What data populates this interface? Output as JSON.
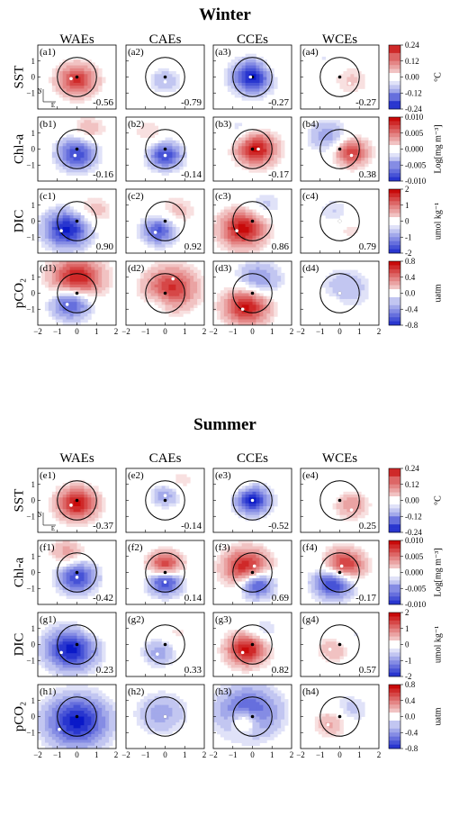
{
  "figure": {
    "columns": [
      "WAEs",
      "CAEs",
      "CCEs",
      "WCEs"
    ],
    "sections": [
      {
        "title": "Winter",
        "rows": [
          {
            "var": "SST",
            "label": "SST",
            "labels": [
              "(a1)",
              "(a2)",
              "(a3)",
              "(a4)"
            ],
            "corr": [
              "-0.56",
              "-0.79",
              "-0.27",
              "-0.27"
            ],
            "colorbar": {
              "unit": "°C",
              "ticks": [
                "0.24",
                "0.12",
                "0.00",
                "-0.12",
                "-0.24"
              ],
              "range": [
                -0.24,
                0.24
              ]
            }
          },
          {
            "var": "Chl",
            "label": "Chl-a",
            "labels": [
              "(b1)",
              "(b2)",
              "(b3)",
              "(b4)"
            ],
            "corr": [
              "-0.16",
              "-0.14",
              "-0.17",
              "0.38"
            ],
            "colorbar": {
              "unit": "Log[mg m⁻³]",
              "ticks": [
                "0.010",
                "0.005",
                "0.000",
                "-0.005",
                "-0.010"
              ],
              "range": [
                -0.01,
                0.01
              ]
            }
          },
          {
            "var": "DIC",
            "label": "DIC",
            "labels": [
              "(c1)",
              "(c2)",
              "(c3)",
              "(c4)"
            ],
            "corr": [
              "0.90",
              "0.92",
              "0.86",
              "0.79"
            ],
            "colorbar": {
              "unit": "umol kg⁻¹",
              "ticks": [
                "2",
                "1",
                "0",
                "-1",
                "-2"
              ],
              "range": [
                -2,
                2
              ]
            }
          },
          {
            "var": "pCO2",
            "label": "pCO₂",
            "labels": [
              "(d1)",
              "(d2)",
              "(d3)",
              "(d4)"
            ],
            "corr": [
              "",
              "",
              "",
              ""
            ],
            "colorbar": {
              "unit": "uatm",
              "ticks": [
                "0.8",
                "0.4",
                "0.0",
                "-0.4",
                "-0.8"
              ],
              "range": [
                -0.8,
                0.8
              ]
            }
          }
        ]
      },
      {
        "title": "Summer",
        "rows": [
          {
            "var": "SST",
            "label": "SST",
            "labels": [
              "(e1)",
              "(e2)",
              "(e3)",
              "(e4)"
            ],
            "corr": [
              "-0.37",
              "-0.14",
              "-0.52",
              "0.25"
            ],
            "colorbar": {
              "unit": "°C",
              "ticks": [
                "0.24",
                "0.12",
                "0.00",
                "-0.12",
                "-0.24"
              ],
              "range": [
                -0.24,
                0.24
              ]
            }
          },
          {
            "var": "Chl",
            "label": "Chl-a",
            "labels": [
              "(f1)",
              "(f2)",
              "(f3)",
              "(f4)"
            ],
            "corr": [
              "-0.42",
              "0.14",
              "0.69",
              "-0.17"
            ],
            "colorbar": {
              "unit": "Log[mg m⁻³]",
              "ticks": [
                "0.010",
                "0.005",
                "0.000",
                "-0.005",
                "-0.010"
              ],
              "range": [
                -0.01,
                0.01
              ]
            }
          },
          {
            "var": "DIC",
            "label": "DIC",
            "labels": [
              "(g1)",
              "(g2)",
              "(g3)",
              "(g4)"
            ],
            "corr": [
              "0.23",
              "0.33",
              "0.82",
              "0.57"
            ],
            "colorbar": {
              "unit": "umol kg⁻¹",
              "ticks": [
                "2",
                "1",
                "0",
                "-1",
                "-2"
              ],
              "range": [
                -2,
                2
              ]
            }
          },
          {
            "var": "pCO2",
            "label": "pCO₂",
            "labels": [
              "(h1)",
              "(h2)",
              "(h3)",
              "(h4)"
            ],
            "corr": [
              "",
              "",
              "",
              ""
            ],
            "colorbar": {
              "unit": "uatm",
              "ticks": [
                "0.8",
                "0.4",
                "0.0",
                "-0.4",
                "-0.8"
              ],
              "range": [
                -0.8,
                0.8
              ]
            }
          }
        ]
      }
    ],
    "compass": {
      "north": "N",
      "east": "E"
    }
  },
  "chart_data": {
    "type": "heatmap",
    "x": {
      "ticks": [
        "−2",
        "−1",
        "0",
        "1",
        "2"
      ],
      "range": [
        -2,
        2
      ]
    },
    "y": {
      "ticks": [
        "1",
        "0",
        "−1"
      ],
      "range": [
        -2,
        2
      ]
    },
    "grid": false,
    "colormap": {
      "low": "#0a1fd0",
      "mid": "#ffffff",
      "high": "#d40a0a"
    },
    "panels": {
      "a1": {
        "blobs": [
          [
            0,
            -0.2,
            0.7,
            0.2
          ]
        ],
        "center": [
          0,
          0
        ],
        "extremum": [
          -0.3,
          -0.1
        ]
      },
      "a2": {
        "blobs": [
          [
            0,
            -0.2,
            0.6,
            -0.07
          ],
          [
            0.8,
            1.2,
            0.6,
            0.03
          ]
        ],
        "center": [
          0,
          0
        ],
        "extremum": [
          0,
          -0.3
        ]
      },
      "a3": {
        "blobs": [
          [
            0,
            0,
            0.7,
            -0.24
          ],
          [
            1.0,
            0.5,
            0.6,
            0.04
          ]
        ],
        "center": [
          0,
          0
        ],
        "extremum": [
          -0.1,
          0
        ]
      },
      "a4": {
        "blobs": [
          [
            0.6,
            -0.2,
            0.7,
            0.05
          ],
          [
            -0.8,
            1.2,
            0.6,
            -0.03
          ]
        ],
        "center": [
          0,
          0
        ],
        "extremum": [
          0.5,
          -0.4
        ]
      },
      "b1": {
        "blobs": [
          [
            0,
            -0.3,
            0.7,
            -0.008
          ],
          [
            0.6,
            1.2,
            0.6,
            0.003
          ]
        ],
        "center": [
          0,
          0
        ],
        "extremum": [
          -0.1,
          -0.4
        ]
      },
      "b2": {
        "blobs": [
          [
            0,
            -0.4,
            0.6,
            -0.008
          ],
          [
            -0.8,
            1.0,
            0.6,
            0.002
          ]
        ],
        "center": [
          0,
          0
        ],
        "extremum": [
          0,
          -0.4
        ]
      },
      "b3": {
        "blobs": [
          [
            0.2,
            0,
            0.7,
            0.01
          ],
          [
            -0.6,
            1.2,
            0.6,
            -0.002
          ]
        ],
        "center": [
          0,
          0
        ],
        "extremum": [
          0.3,
          0
        ]
      },
      "b4": {
        "blobs": [
          [
            0.6,
            -0.2,
            0.6,
            0.008
          ],
          [
            -0.6,
            0.8,
            0.7,
            -0.004
          ]
        ],
        "center": [
          0,
          0
        ],
        "extremum": [
          0.6,
          -0.4
        ]
      },
      "c1": {
        "blobs": [
          [
            -0.5,
            -0.5,
            0.8,
            -2
          ],
          [
            0.8,
            0.6,
            0.7,
            0.6
          ]
        ],
        "center": [
          0,
          0
        ],
        "extremum": [
          -0.8,
          -0.6
        ]
      },
      "c2": {
        "blobs": [
          [
            -0.3,
            -0.6,
            0.6,
            -1.5
          ],
          [
            0.6,
            0.6,
            0.7,
            0.5
          ]
        ],
        "center": [
          0,
          0
        ],
        "extremum": [
          -0.5,
          -0.7
        ]
      },
      "c3": {
        "blobs": [
          [
            -0.5,
            -0.5,
            0.8,
            2
          ],
          [
            0.6,
            1.0,
            0.6,
            -0.5
          ]
        ],
        "center": [
          0,
          0
        ],
        "extremum": [
          -0.8,
          -0.6
        ]
      },
      "c4": {
        "blobs": [
          [
            -0.3,
            0.6,
            0.6,
            -0.4
          ],
          [
            0.5,
            -0.5,
            0.6,
            0.3
          ]
        ],
        "center": [
          0,
          0
        ],
        "extremum": [
          0,
          0
        ]
      },
      "d1": {
        "blobs": [
          [
            0,
            0.9,
            0.9,
            0.8
          ],
          [
            -0.3,
            -0.6,
            0.7,
            -0.7
          ]
        ],
        "center": [
          0,
          0
        ],
        "extremum": [
          -0.5,
          -0.7
        ]
      },
      "d2": {
        "blobs": [
          [
            0.3,
            0.3,
            0.9,
            0.7
          ],
          [
            -0.3,
            -0.5,
            0.5,
            -0.2
          ]
        ],
        "center": [
          0,
          0
        ],
        "extremum": [
          0.4,
          0.9
        ]
      },
      "d3": {
        "blobs": [
          [
            -0.3,
            -0.8,
            0.8,
            0.8
          ],
          [
            0.3,
            0.8,
            0.8,
            -0.4
          ]
        ],
        "center": [
          0,
          0
        ],
        "extremum": [
          -0.5,
          -1.0
        ]
      },
      "d4": {
        "blobs": [
          [
            0.3,
            0.3,
            0.9,
            -0.25
          ],
          [
            -0.5,
            -0.7,
            0.6,
            0.1
          ]
        ],
        "center": [
          0,
          0
        ],
        "extremum": [
          0,
          0
        ]
      },
      "e1": {
        "blobs": [
          [
            0,
            -0.2,
            0.7,
            0.24
          ]
        ],
        "center": [
          0,
          0
        ],
        "extremum": [
          -0.3,
          -0.3
        ]
      },
      "e2": {
        "blobs": [
          [
            0,
            0.3,
            0.5,
            -0.1
          ],
          [
            0.8,
            1.2,
            0.6,
            0.04
          ]
        ],
        "center": [
          0,
          0
        ],
        "extremum": [
          0,
          0.3
        ]
      },
      "e3": {
        "blobs": [
          [
            0,
            0,
            0.6,
            -0.24
          ],
          [
            -0.8,
            1.0,
            0.6,
            0.04
          ]
        ],
        "center": [
          0,
          0
        ],
        "extremum": [
          0,
          0
        ]
      },
      "e4": {
        "blobs": [
          [
            0.6,
            -0.3,
            0.6,
            0.1
          ],
          [
            -0.8,
            0.6,
            0.6,
            -0.02
          ]
        ],
        "center": [
          0,
          0
        ],
        "extremum": [
          0.6,
          -0.6
        ]
      },
      "f1": {
        "blobs": [
          [
            0,
            -0.3,
            0.7,
            -0.008
          ],
          [
            -0.5,
            1.2,
            0.6,
            0.004
          ]
        ],
        "center": [
          0,
          0
        ],
        "extremum": [
          0,
          -0.3
        ]
      },
      "f2": {
        "blobs": [
          [
            0,
            0.4,
            0.6,
            0.01
          ],
          [
            0,
            -0.5,
            0.6,
            -0.01
          ]
        ],
        "center": [
          0,
          0
        ],
        "extremum": [
          0,
          -0.6
        ]
      },
      "f3": {
        "blobs": [
          [
            -0.3,
            0.3,
            0.8,
            0.01
          ],
          [
            0.2,
            -0.7,
            0.6,
            -0.01
          ]
        ],
        "center": [
          0,
          0
        ],
        "extremum": [
          0.1,
          0.4
        ]
      },
      "f4": {
        "blobs": [
          [
            0.2,
            0.4,
            0.7,
            0.01
          ],
          [
            -0.3,
            -0.6,
            0.7,
            -0.01
          ]
        ],
        "center": [
          0,
          0
        ],
        "extremum": [
          0.1,
          0.4
        ]
      },
      "g1": {
        "blobs": [
          [
            -0.3,
            -0.3,
            0.9,
            -2
          ],
          [
            0.6,
            0.8,
            0.6,
            0.3
          ]
        ],
        "center": [
          0,
          0
        ],
        "extremum": [
          -0.8,
          -0.5
        ]
      },
      "g2": {
        "blobs": [
          [
            -0.3,
            -0.5,
            0.6,
            -0.8
          ],
          [
            0.6,
            0.6,
            0.6,
            0.3
          ]
        ],
        "center": [
          0,
          0
        ],
        "extremum": [
          -0.4,
          -0.6
        ]
      },
      "g3": {
        "blobs": [
          [
            -0.3,
            -0.3,
            0.7,
            2
          ],
          [
            0.5,
            0.8,
            0.6,
            -0.5
          ]
        ],
        "center": [
          0,
          0
        ],
        "extremum": [
          -0.5,
          -0.5
        ]
      },
      "g4": {
        "blobs": [
          [
            -0.3,
            -0.3,
            0.6,
            0.6
          ],
          [
            0.6,
            0.5,
            0.6,
            -0.3
          ]
        ],
        "center": [
          0,
          0
        ],
        "extremum": [
          -0.5,
          -0.3
        ]
      },
      "h1": {
        "blobs": [
          [
            0,
            -0.3,
            1.1,
            -0.8
          ]
        ],
        "center": [
          0,
          0
        ],
        "extremum": [
          -0.9,
          -0.8
        ]
      },
      "h2": {
        "blobs": [
          [
            -0.2,
            0.2,
            0.9,
            -0.3
          ]
        ],
        "center": [
          0,
          0
        ],
        "extremum": [
          0,
          0
        ]
      },
      "h3": {
        "blobs": [
          [
            -0.2,
            0.3,
            1.1,
            -0.6
          ],
          [
            -0.4,
            -0.3,
            0.5,
            0.5
          ]
        ],
        "center": [
          0,
          0
        ],
        "extremum": [
          -0.5,
          -0.3
        ]
      },
      "h4": {
        "blobs": [
          [
            -0.4,
            -0.4,
            0.6,
            0.3
          ],
          [
            0.5,
            0.4,
            0.7,
            -0.2
          ]
        ],
        "center": [
          0,
          0
        ],
        "extremum": [
          -0.6,
          -0.5
        ]
      }
    }
  }
}
